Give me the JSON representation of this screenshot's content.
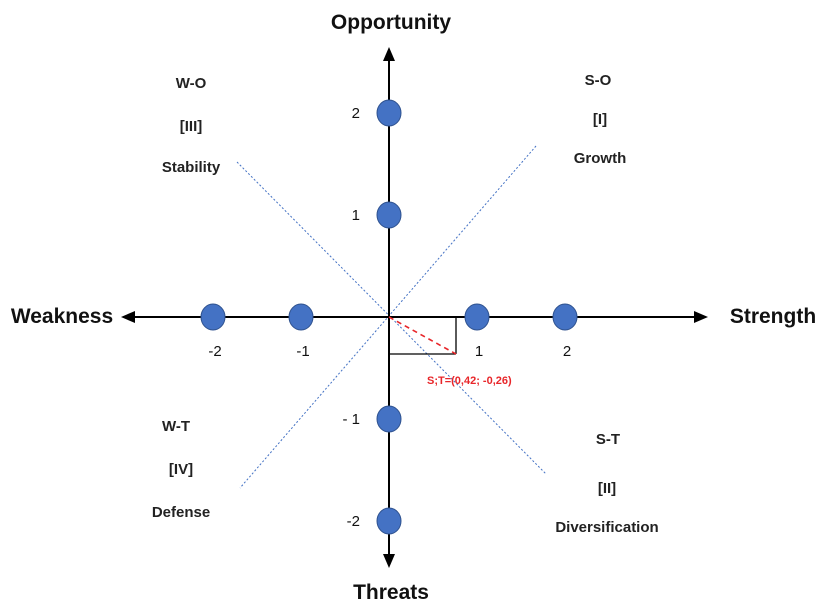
{
  "axes": {
    "top": "Opportunity",
    "bottom": "Threats",
    "left": "Weakness",
    "right": "Strength"
  },
  "quadrants": {
    "q1": {
      "code": "S-O",
      "roman": "[I]",
      "name": "Growth"
    },
    "q2": {
      "code": "S-T",
      "roman": "[II]",
      "name": "Diversification"
    },
    "q3": {
      "code": "W-O",
      "roman": "[III]",
      "name": "Stability"
    },
    "q4": {
      "code": "W-T",
      "roman": "[IV]",
      "name": "Defense"
    }
  },
  "ticks": {
    "x": [
      {
        "value": -2,
        "label": "-2"
      },
      {
        "value": -1,
        "label": "-1"
      },
      {
        "value": 1,
        "label": "1"
      },
      {
        "value": 2,
        "label": "2"
      }
    ],
    "y": [
      {
        "value": 2,
        "label": "2"
      },
      {
        "value": 1,
        "label": "1"
      },
      {
        "value": -1,
        "label": "- 1"
      },
      {
        "value": -2,
        "label": "-2"
      }
    ]
  },
  "result_point": {
    "x": 0.42,
    "y": -0.26,
    "label": "S;T=(0,42; -0,26)"
  },
  "colors": {
    "axis": "#000000",
    "marker": "#4472c4",
    "marker_stroke": "#2f528f",
    "dotted_diagonal": "#4472c4",
    "result": "#e8262a"
  }
}
